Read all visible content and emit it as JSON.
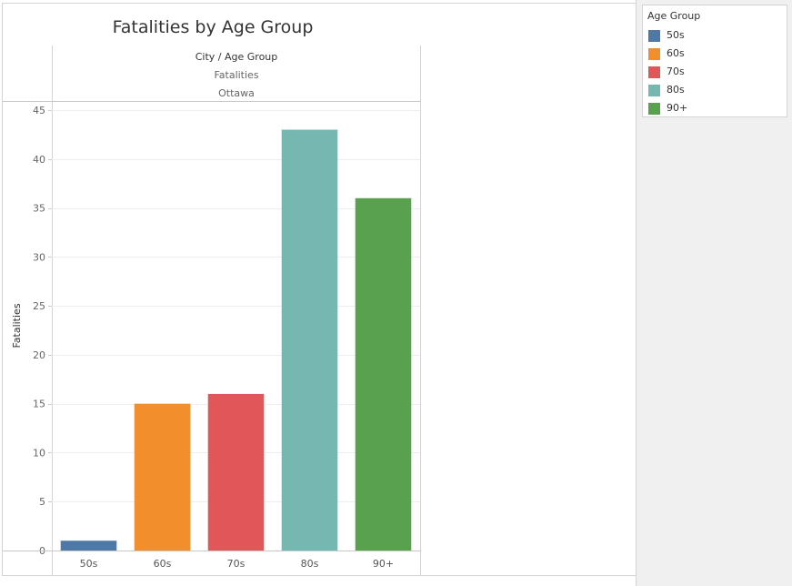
{
  "chart_data": {
    "type": "bar",
    "title": "Fatalities by Age Group",
    "header": {
      "row_label": "City / Age Group",
      "measure_label": "Fatalities",
      "city": "Ottawa"
    },
    "ylabel": "Fatalities",
    "xlabel": "",
    "categories": [
      "50s",
      "60s",
      "70s",
      "80s",
      "90+"
    ],
    "values": [
      1,
      15,
      16,
      43,
      36
    ],
    "colors": [
      "#4e79a7",
      "#f28e2b",
      "#e15759",
      "#76b7b2",
      "#59a14f"
    ],
    "ylim": [
      0,
      45
    ],
    "yticks": [
      0,
      5,
      10,
      15,
      20,
      25,
      30,
      35,
      40,
      45
    ],
    "grid": true,
    "legend_position": "right"
  },
  "legend": {
    "title": "Age Group",
    "items": [
      {
        "label": "50s",
        "color": "#4e79a7"
      },
      {
        "label": "60s",
        "color": "#f28e2b"
      },
      {
        "label": "70s",
        "color": "#e15759"
      },
      {
        "label": "80s",
        "color": "#76b7b2"
      },
      {
        "label": "90+",
        "color": "#59a14f"
      }
    ]
  }
}
